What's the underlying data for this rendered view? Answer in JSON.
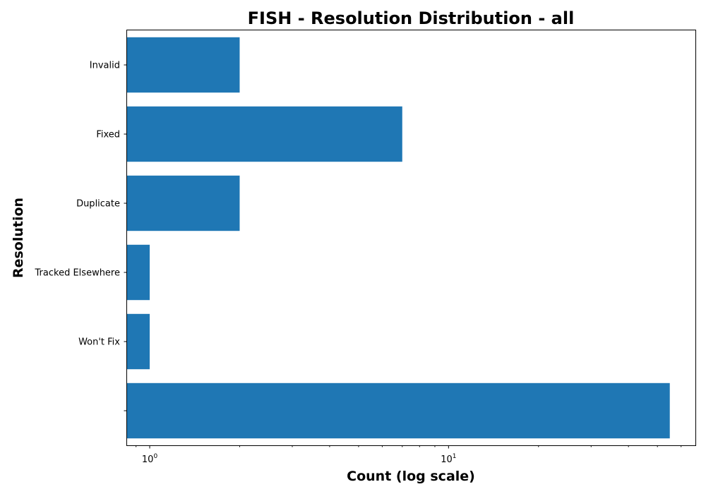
{
  "chart_data": {
    "type": "bar",
    "orientation": "horizontal",
    "title": "FISH - Resolution Distribution - all",
    "xlabel": "Count (log scale)",
    "ylabel": "Resolution",
    "x_scale": "log",
    "xlim": [
      0.84,
      67
    ],
    "categories": [
      "",
      "Won't Fix",
      "Tracked Elsewhere",
      "Duplicate",
      "Fixed",
      "Invalid"
    ],
    "values": [
      55,
      1,
      1,
      2,
      7,
      2
    ],
    "x_ticks": [
      {
        "value": 1,
        "base": "10",
        "exp": "0"
      },
      {
        "value": 10,
        "base": "10",
        "exp": "1"
      }
    ],
    "bar_color": "#1f77b4",
    "grid": false,
    "legend": "none"
  }
}
